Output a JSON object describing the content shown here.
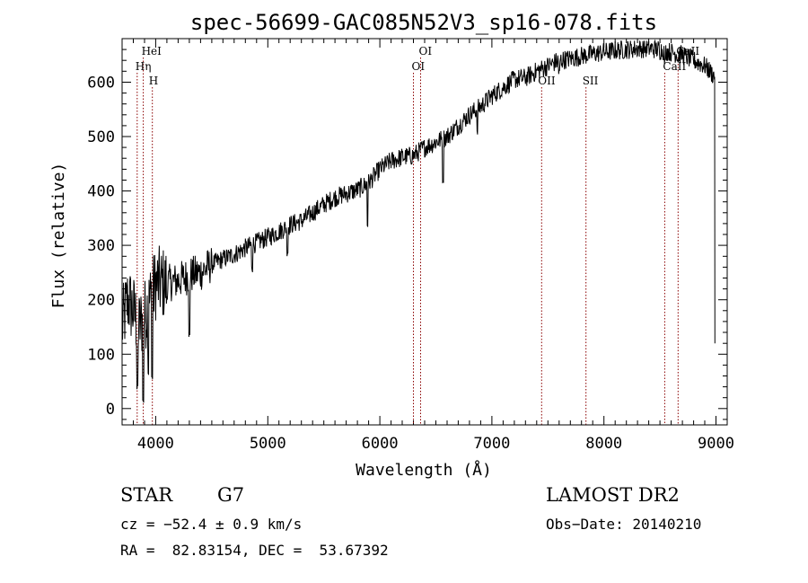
{
  "chart_data": {
    "type": "line",
    "title": "spec-56699-GAC085N52V3_sp16-078.fits",
    "xlabel": "Wavelength (Å)",
    "ylabel": "Flux (relative)",
    "xlim": [
      3700,
      9100
    ],
    "ylim": [
      -30,
      680
    ],
    "xticks": [
      4000,
      5000,
      6000,
      7000,
      8000,
      9000
    ],
    "yticks": [
      0,
      100,
      200,
      300,
      400,
      500,
      600
    ],
    "grid": false,
    "legend": "none",
    "line_color": "#000000",
    "marker_color": "#8b0000",
    "series_anchors": [
      [
        3700,
        150
      ],
      [
        3750,
        200
      ],
      [
        3800,
        180
      ],
      [
        3850,
        150
      ],
      [
        3900,
        170
      ],
      [
        3950,
        200
      ],
      [
        4000,
        230
      ],
      [
        4100,
        230
      ],
      [
        4200,
        235
      ],
      [
        4300,
        245
      ],
      [
        4400,
        250
      ],
      [
        4500,
        265
      ],
      [
        4600,
        275
      ],
      [
        4700,
        283
      ],
      [
        4800,
        295
      ],
      [
        4900,
        305
      ],
      [
        5000,
        315
      ],
      [
        5100,
        325
      ],
      [
        5200,
        338
      ],
      [
        5300,
        345
      ],
      [
        5400,
        360
      ],
      [
        5500,
        375
      ],
      [
        5600,
        388
      ],
      [
        5700,
        395
      ],
      [
        5800,
        402
      ],
      [
        5900,
        415
      ],
      [
        6000,
        440
      ],
      [
        6100,
        455
      ],
      [
        6200,
        462
      ],
      [
        6300,
        465
      ],
      [
        6400,
        480
      ],
      [
        6500,
        490
      ],
      [
        6600,
        500
      ],
      [
        6700,
        520
      ],
      [
        6800,
        540
      ],
      [
        6900,
        555
      ],
      [
        7000,
        575
      ],
      [
        7100,
        590
      ],
      [
        7200,
        605
      ],
      [
        7300,
        608
      ],
      [
        7400,
        620
      ],
      [
        7500,
        630
      ],
      [
        7600,
        640
      ],
      [
        7700,
        643
      ],
      [
        7800,
        648
      ],
      [
        7900,
        652
      ],
      [
        8000,
        655
      ],
      [
        8100,
        658
      ],
      [
        8200,
        660
      ],
      [
        8300,
        662
      ],
      [
        8400,
        662
      ],
      [
        8500,
        660
      ],
      [
        8600,
        655
      ],
      [
        8700,
        650
      ],
      [
        8800,
        640
      ],
      [
        8900,
        630
      ],
      [
        8990,
        610
      ]
    ],
    "absorption_features": [
      [
        3835,
        30
      ],
      [
        3889,
        5
      ],
      [
        3934,
        60
      ],
      [
        3969,
        50
      ],
      [
        4102,
        200
      ],
      [
        4300,
        130
      ],
      [
        4861,
        250
      ],
      [
        5175,
        280
      ],
      [
        5890,
        330
      ],
      [
        6563,
        415
      ],
      [
        6870,
        500
      ],
      [
        7600,
        610
      ],
      [
        8498,
        640
      ],
      [
        8542,
        630
      ],
      [
        8662,
        630
      ]
    ],
    "lines": [
      {
        "label": "Hη",
        "wavelength": 3835,
        "label_row": 2
      },
      {
        "label": "HeI",
        "wavelength": 3889,
        "label_row": 1
      },
      {
        "label": "H",
        "wavelength": 3970,
        "label_row": 3
      },
      {
        "label": "OI",
        "wavelength": 6300,
        "label_row": 2
      },
      {
        "label": "OI",
        "wavelength": 6364,
        "label_row": 1
      },
      {
        "label": "OII",
        "wavelength": 7444,
        "label_row": 3
      },
      {
        "label": "SII",
        "wavelength": 7840,
        "label_row": 3
      },
      {
        "label": "CaII",
        "wavelength": 8542,
        "label_row": 2
      },
      {
        "label": "CaII",
        "wavelength": 8662,
        "label_row": 1
      }
    ]
  },
  "info": {
    "class": "STAR",
    "subclass": "G7",
    "survey": "LAMOST DR2",
    "cz": "cz = −52.4 ± 0.9 km/s",
    "obs_date": "Obs−Date: 20140210",
    "coords": "RA =  82.83154, DEC =  53.67392"
  }
}
